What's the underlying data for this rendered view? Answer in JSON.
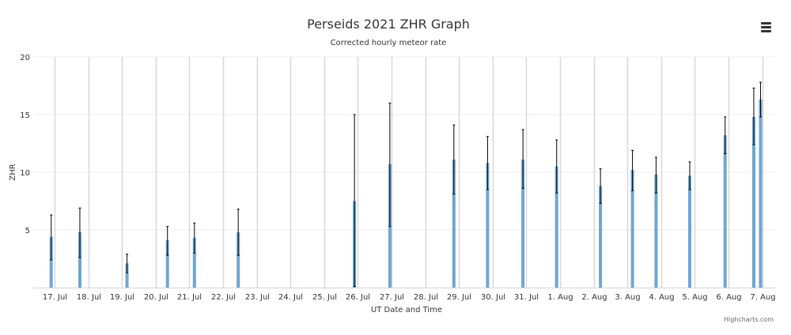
{
  "chart_data": {
    "type": "bar",
    "title": "Perseids 2021 ZHR Graph",
    "subtitle": "Corrected hourly meteor rate",
    "xlabel": "UT Date and Time",
    "ylabel": "ZHR",
    "credits": "Highcharts.com",
    "x_tick_labels": [
      "17. Jul",
      "18. Jul",
      "19. Jul",
      "20. Jul",
      "21. Jul",
      "22. Jul",
      "23. Jul",
      "24. Jul",
      "25. Jul",
      "26. Jul",
      "27. Jul",
      "28. Jul",
      "29. Jul",
      "30. Jul",
      "31. Jul",
      "1. Aug",
      "2. Aug",
      "3. Aug",
      "4. Aug",
      "5. Aug",
      "6. Aug",
      "7. Aug"
    ],
    "y_ticks": [
      5,
      10,
      15,
      20
    ],
    "ylim": [
      0,
      20
    ],
    "grid": true,
    "colors": {
      "bar": "#6ea6d1",
      "error": "#000000",
      "gridline": "#d8d8d8",
      "axis": "#ccd6eb"
    },
    "points": [
      {
        "day": 16.9,
        "value": 4.4,
        "err_low": 2.4,
        "err_high": 6.3
      },
      {
        "day": 17.75,
        "value": 4.8,
        "err_low": 2.6,
        "err_high": 6.9
      },
      {
        "day": 19.15,
        "value": 2.1,
        "err_low": 1.3,
        "err_high": 2.9
      },
      {
        "day": 20.35,
        "value": 4.1,
        "err_low": 2.8,
        "err_high": 5.3
      },
      {
        "day": 21.15,
        "value": 4.3,
        "err_low": 3.0,
        "err_high": 5.6
      },
      {
        "day": 22.45,
        "value": 4.8,
        "err_low": 2.8,
        "err_high": 6.8
      },
      {
        "day": 25.9,
        "value": 7.5,
        "err_low": 0.1,
        "err_high": 15.0
      },
      {
        "day": 26.95,
        "value": 10.7,
        "err_low": 5.3,
        "err_high": 16.0
      },
      {
        "day": 28.85,
        "value": 11.1,
        "err_low": 8.1,
        "err_high": 14.1
      },
      {
        "day": 29.85,
        "value": 10.8,
        "err_low": 8.5,
        "err_high": 13.1
      },
      {
        "day": 30.9,
        "value": 11.1,
        "err_low": 8.6,
        "err_high": 13.7
      },
      {
        "day": 31.9,
        "value": 10.5,
        "err_low": 8.2,
        "err_high": 12.8
      },
      {
        "day": 33.2,
        "value": 8.8,
        "err_low": 7.3,
        "err_high": 10.3
      },
      {
        "day": 34.15,
        "value": 10.2,
        "err_low": 8.4,
        "err_high": 11.9
      },
      {
        "day": 34.85,
        "value": 9.8,
        "err_low": 8.2,
        "err_high": 11.3
      },
      {
        "day": 35.85,
        "value": 9.7,
        "err_low": 8.5,
        "err_high": 10.9
      },
      {
        "day": 36.9,
        "value": 13.2,
        "err_low": 11.6,
        "err_high": 14.8
      },
      {
        "day": 37.75,
        "value": 14.8,
        "err_low": 12.4,
        "err_high": 17.3
      },
      {
        "day": 37.95,
        "value": 16.3,
        "err_low": 14.8,
        "err_high": 17.8
      }
    ]
  },
  "ui": {
    "menu_icon": "hamburger-menu-icon"
  }
}
